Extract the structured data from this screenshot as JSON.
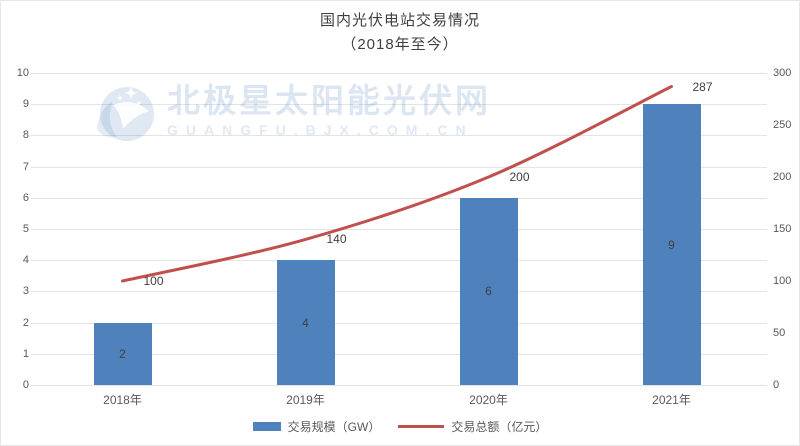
{
  "title": {
    "line1": "国内光伏电站交易情况",
    "line2": "（2018年至今）"
  },
  "watermark": {
    "main": "北极星太阳能光伏网",
    "sub": "GUANGFU.BJX.COM.CN",
    "logo": "star-moon-logo",
    "color": "#d9e4f3"
  },
  "legend": [
    {
      "label": "交易规模（GW）",
      "type": "bar",
      "color": "#4F81BD"
    },
    {
      "label": "交易总额（亿元）",
      "type": "line",
      "color": "#C0504D"
    }
  ],
  "chart_data": {
    "type": "bar+line combo",
    "title": "国内光伏电站交易情况（2018年至今）",
    "categories": [
      "2018年",
      "2019年",
      "2020年",
      "2021年"
    ],
    "series": [
      {
        "name": "交易规模（GW）",
        "type": "bar",
        "axis": "left",
        "color": "#4F81BD",
        "values": [
          2,
          4,
          6,
          9
        ]
      },
      {
        "name": "交易总额（亿元）",
        "type": "line",
        "axis": "right",
        "color": "#C0504D",
        "values": [
          100,
          140,
          200,
          287
        ]
      }
    ],
    "left_axis": {
      "min": 0,
      "max": 10,
      "step": 1,
      "ticks": [
        0,
        1,
        2,
        3,
        4,
        5,
        6,
        7,
        8,
        9,
        10
      ]
    },
    "right_axis": {
      "min": 0,
      "max": 300,
      "step": 50,
      "ticks": [
        0,
        50,
        100,
        150,
        200,
        250,
        300
      ]
    },
    "grid": true,
    "data_labels": true,
    "legend_position": "bottom"
  }
}
